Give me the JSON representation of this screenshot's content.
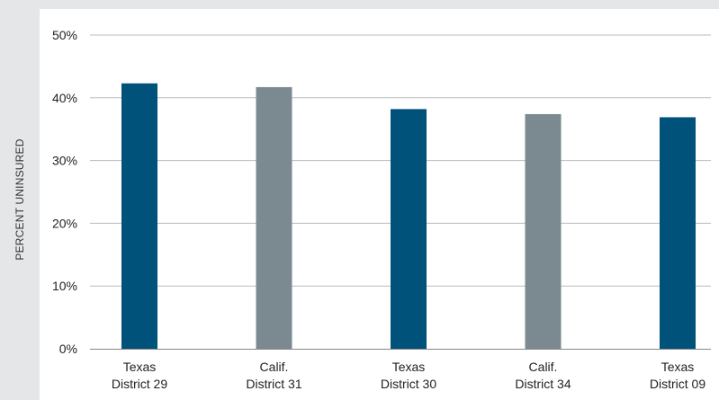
{
  "chart_data": {
    "type": "bar",
    "ylabel": "PERCENT UNINSURED",
    "ylim": [
      0,
      50
    ],
    "yticks": [
      {
        "value": 0,
        "label": "0%"
      },
      {
        "value": 10,
        "label": "10%"
      },
      {
        "value": 20,
        "label": "20%"
      },
      {
        "value": 30,
        "label": "30%"
      },
      {
        "value": 40,
        "label": "40%"
      },
      {
        "value": 50,
        "label": "50%"
      }
    ],
    "grid": true,
    "categories": [
      {
        "line1": "Texas",
        "line2": "District 29"
      },
      {
        "line1": "Calif.",
        "line2": "District 31"
      },
      {
        "line1": "Texas",
        "line2": "District 30"
      },
      {
        "line1": "Calif.",
        "line2": "District 34"
      },
      {
        "line1": "Texas",
        "line2": "District 09"
      }
    ],
    "values": [
      42.3,
      41.7,
      38.2,
      37.4,
      36.9
    ],
    "colors": {
      "texas": "#00527a",
      "california": "#7a8a90",
      "grid": "#b9bcbf",
      "axis": "#888888"
    },
    "bar_colors": [
      "texas",
      "california",
      "texas",
      "california",
      "texas"
    ]
  }
}
